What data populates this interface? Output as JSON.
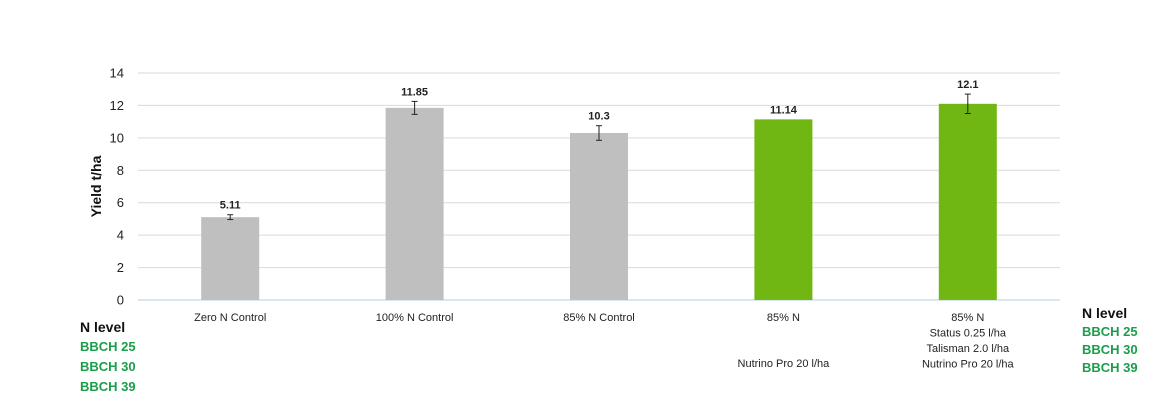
{
  "chart_data": {
    "type": "bar",
    "ylabel": "Yield t/ha",
    "ylim": [
      0,
      14
    ],
    "yticks": [
      0,
      2,
      4,
      6,
      8,
      10,
      12,
      14
    ],
    "grid": true,
    "categories": [
      {
        "lines": [
          "Zero N Control"
        ],
        "note": ""
      },
      {
        "lines": [
          "100% N Control"
        ],
        "note": ""
      },
      {
        "lines": [
          "85% N Control"
        ],
        "note": ""
      },
      {
        "lines": [
          "85% N"
        ],
        "note": "Nutrino Pro 20 l/ha"
      },
      {
        "lines": [
          "85% N",
          "Status 0.25 l/ha",
          "Talisman 2.0 l/ha",
          "Nutrino Pro 20 l/ha"
        ],
        "note": ""
      }
    ],
    "values": [
      5.11,
      11.85,
      10.3,
      11.14,
      12.1
    ],
    "value_labels": [
      "5.11",
      "11.85",
      "10.3",
      "11.14",
      "12.1"
    ],
    "error": [
      0.15,
      0.4,
      0.45,
      0,
      0.6
    ],
    "bar_colors": [
      "#bfbfbf",
      "#bfbfbf",
      "#bfbfbf",
      "#70b714",
      "#70b714"
    ],
    "grid_color": "#d9d9d9",
    "axis_color": "#c8d8e4"
  },
  "legend_left": {
    "title": "N level",
    "stages": [
      "BBCH 25",
      "BBCH 30",
      "BBCH 39"
    ]
  },
  "legend_right": {
    "title": "N level",
    "stages": [
      "BBCH 25",
      "BBCH 30",
      "BBCH 39"
    ]
  },
  "colors": {
    "stage_green": "#1a9e4a"
  }
}
